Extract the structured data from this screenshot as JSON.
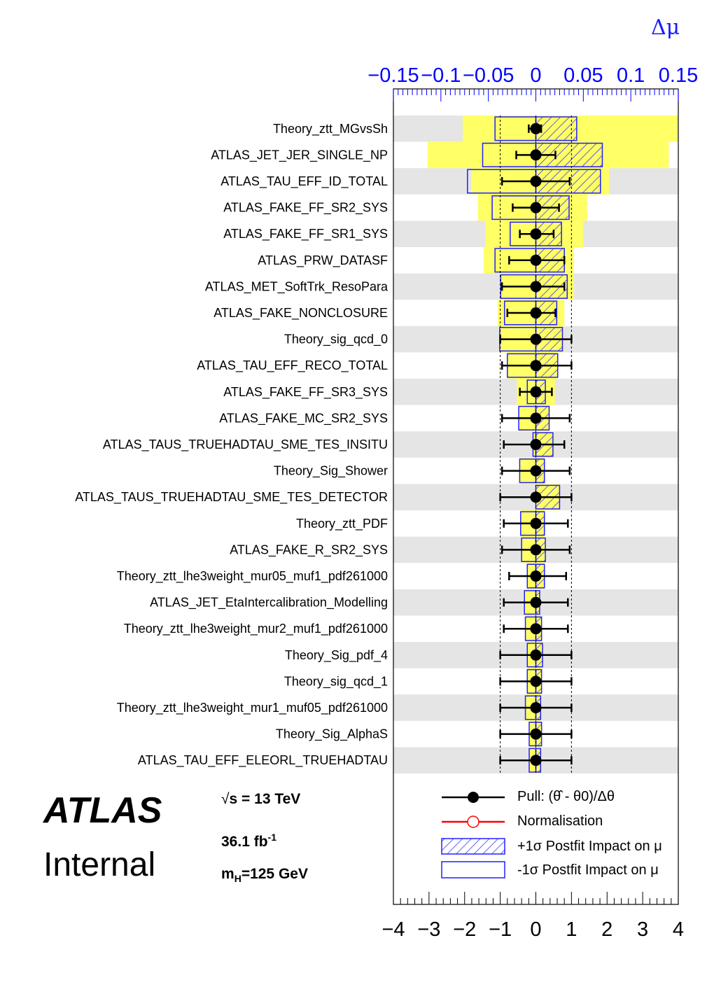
{
  "chart_data": {
    "type": "ranking",
    "top_axis": {
      "label": "Δμ",
      "range": [
        -0.15,
        0.15
      ],
      "tick_labels": [
        "−0.15",
        "−0.1",
        "−0.05",
        "0",
        "0.05",
        "0.1",
        "0.15"
      ],
      "tick_values": [
        -0.15,
        -0.1,
        -0.05,
        0,
        0.05,
        0.1,
        0.15
      ],
      "color": "#0000ff"
    },
    "bottom_axis": {
      "label": "",
      "range": [
        -4,
        4
      ],
      "tick_labels": [
        "−4",
        "−3",
        "−2",
        "−1",
        "0",
        "1",
        "2",
        "3",
        "4"
      ],
      "tick_values": [
        -4,
        -3,
        -2,
        -1,
        0,
        1,
        2,
        3,
        4
      ]
    },
    "nuisance_parameters": [
      {
        "name": "Theory_ztt_MGvsSh",
        "pull": 0.0,
        "pull_err_lo": 0.2,
        "pull_err_hi": 0.15,
        "pre_up": 0.15,
        "pre_down": -0.077,
        "post_up": 0.043,
        "post_down": -0.043
      },
      {
        "name": "ATLAS_JET_JER_SINGLE_NP",
        "pull": 0.0,
        "pull_err_lo": 0.55,
        "pull_err_hi": 0.55,
        "pre_up": 0.14,
        "pre_down": -0.114,
        "post_up": 0.07,
        "post_down": -0.056
      },
      {
        "name": "ATLAS_TAU_EFF_ID_TOTAL",
        "pull": 0.0,
        "pull_err_lo": 0.95,
        "pull_err_hi": 0.95,
        "pre_up": 0.077,
        "pre_down": -0.068,
        "post_up": 0.068,
        "post_down": -0.072
      },
      {
        "name": "ATLAS_FAKE_FF_SR2_SYS",
        "pull": 0.0,
        "pull_err_lo": 0.65,
        "pull_err_hi": 0.65,
        "pre_up": 0.054,
        "pre_down": -0.061,
        "post_up": 0.035,
        "post_down": -0.046
      },
      {
        "name": "ATLAS_FAKE_FF_SR1_SYS",
        "pull": 0.0,
        "pull_err_lo": 0.45,
        "pull_err_hi": 0.5,
        "pre_up": 0.05,
        "pre_down": -0.053,
        "post_up": 0.027,
        "post_down": -0.027
      },
      {
        "name": "ATLAS_PRW_DATASF",
        "pull": 0.0,
        "pull_err_lo": 0.75,
        "pull_err_hi": 0.8,
        "pre_up": 0.04,
        "pre_down": -0.055,
        "post_up": 0.03,
        "post_down": -0.043
      },
      {
        "name": "ATLAS_MET_SoftTrk_ResoPara",
        "pull": 0.0,
        "pull_err_lo": 0.95,
        "pull_err_hi": 0.8,
        "pre_up": 0.04,
        "pre_down": -0.038,
        "post_up": 0.033,
        "post_down": -0.037
      },
      {
        "name": "ATLAS_FAKE_NONCLOSURE",
        "pull": 0.0,
        "pull_err_lo": 0.8,
        "pull_err_hi": 0.55,
        "pre_up": 0.03,
        "pre_down": -0.04,
        "post_up": 0.022,
        "post_down": -0.033
      },
      {
        "name": "Theory_sig_qcd_0",
        "pull": 0.0,
        "pull_err_lo": 1.0,
        "pull_err_hi": 1.0,
        "pre_up": 0.029,
        "pre_down": -0.038,
        "post_up": 0.028,
        "post_down": -0.038
      },
      {
        "name": "ATLAS_TAU_EFF_RECO_TOTAL",
        "pull": 0.0,
        "pull_err_lo": 0.95,
        "pull_err_hi": 1.0,
        "pre_up": 0.023,
        "pre_down": -0.03,
        "post_up": 0.023,
        "post_down": -0.03
      },
      {
        "name": "ATLAS_FAKE_FF_SR3_SYS",
        "pull": 0.0,
        "pull_err_lo": 0.45,
        "pull_err_hi": 0.45,
        "pre_up": 0.02,
        "pre_down": -0.02,
        "post_up": 0.01,
        "post_down": -0.009
      },
      {
        "name": "ATLAS_FAKE_MC_SR2_SYS",
        "pull": 0.0,
        "pull_err_lo": 0.95,
        "pull_err_hi": 0.95,
        "pre_up": 0.014,
        "pre_down": -0.018,
        "post_up": 0.014,
        "post_down": -0.018
      },
      {
        "name": "ATLAS_TAUS_TRUEHADTAU_SME_TES_INSITU",
        "pull": 0.0,
        "pull_err_lo": 0.9,
        "pull_err_hi": 0.8,
        "pre_up": 0.018,
        "pre_down": -0.003,
        "post_up": 0.018,
        "post_down": -0.003
      },
      {
        "name": "Theory_Sig_Shower",
        "pull": 0.0,
        "pull_err_lo": 0.95,
        "pull_err_hi": 0.95,
        "pre_up": 0.009,
        "pre_down": -0.017,
        "post_up": 0.009,
        "post_down": -0.017
      },
      {
        "name": "ATLAS_TAUS_TRUEHADTAU_SME_TES_DETECTOR",
        "pull": 0.0,
        "pull_err_lo": 1.0,
        "pull_err_hi": 1.0,
        "pre_up": 0.025,
        "pre_down": -0.0,
        "post_up": 0.025,
        "post_down": -0.0
      },
      {
        "name": "Theory_ztt_PDF",
        "pull": 0.0,
        "pull_err_lo": 0.9,
        "pull_err_hi": 0.9,
        "pre_up": 0.009,
        "pre_down": -0.016,
        "post_up": 0.009,
        "post_down": -0.016
      },
      {
        "name": "ATLAS_FAKE_R_SR2_SYS",
        "pull": 0.0,
        "pull_err_lo": 0.95,
        "pull_err_hi": 0.95,
        "pre_up": 0.01,
        "pre_down": -0.015,
        "post_up": 0.01,
        "post_down": -0.015
      },
      {
        "name": "Theory_ztt_lhe3weight_mur05_muf1_pdf261000",
        "pull": 0.0,
        "pull_err_lo": 0.75,
        "pull_err_hi": 0.85,
        "pre_up": 0.009,
        "pre_down": -0.009,
        "post_up": 0.009,
        "post_down": -0.009
      },
      {
        "name": "ATLAS_JET_EtaIntercalibration_Modelling",
        "pull": 0.0,
        "pull_err_lo": 0.9,
        "pull_err_hi": 0.9,
        "pre_up": 0.004,
        "pre_down": -0.012,
        "post_up": 0.004,
        "post_down": -0.012
      },
      {
        "name": "Theory_ztt_lhe3weight_mur2_muf1_pdf261000",
        "pull": 0.0,
        "pull_err_lo": 0.9,
        "pull_err_hi": 0.9,
        "pre_up": 0.006,
        "pre_down": -0.011,
        "post_up": 0.006,
        "post_down": -0.011
      },
      {
        "name": "Theory_Sig_pdf_4",
        "pull": 0.0,
        "pull_err_lo": 1.0,
        "pull_err_hi": 1.0,
        "pre_up": 0.007,
        "pre_down": -0.009,
        "post_up": 0.007,
        "post_down": -0.009
      },
      {
        "name": "Theory_sig_qcd_1",
        "pull": 0.0,
        "pull_err_lo": 1.0,
        "pull_err_hi": 1.0,
        "pre_up": 0.006,
        "pre_down": -0.009,
        "post_up": 0.006,
        "post_down": -0.009
      },
      {
        "name": "Theory_ztt_lhe3weight_mur1_muf05_pdf261000",
        "pull": 0.0,
        "pull_err_lo": 1.0,
        "pull_err_hi": 1.0,
        "pre_up": 0.005,
        "pre_down": -0.011,
        "post_up": 0.005,
        "post_down": -0.011
      },
      {
        "name": "Theory_Sig_AlphaS",
        "pull": 0.0,
        "pull_err_lo": 1.0,
        "pull_err_hi": 1.0,
        "pre_up": 0.006,
        "pre_down": -0.007,
        "post_up": 0.006,
        "post_down": -0.007
      },
      {
        "name": "ATLAS_TAU_EFF_ELEORL_TRUEHADTAU",
        "pull": 0.0,
        "pull_err_lo": 1.0,
        "pull_err_hi": 1.0,
        "pre_up": 0.005,
        "pre_down": -0.007,
        "post_up": 0.005,
        "post_down": -0.007
      }
    ],
    "legend": {
      "placement": "bottom-right",
      "entries": [
        "Pull: (θ̂ - θ0)/Δθ",
        "Normalisation",
        "+1σ Postfit Impact on μ",
        "-1σ Postfit Impact on μ"
      ]
    },
    "colors": {
      "band_gray": "#e5e5e5",
      "prefit_yellow": "#ffff66",
      "impact_blue": "#2020ff",
      "pull": "#000000",
      "normalisation": "#ff0000"
    }
  },
  "labels": {
    "experiment": "ATLAS",
    "status": "Internal",
    "energy": "s = 13 TeV",
    "lumi": "36.1 fb",
    "lumi_exp": "-1",
    "mass": "m",
    "mass_sub": "H",
    "mass_value": "=125 GeV"
  }
}
